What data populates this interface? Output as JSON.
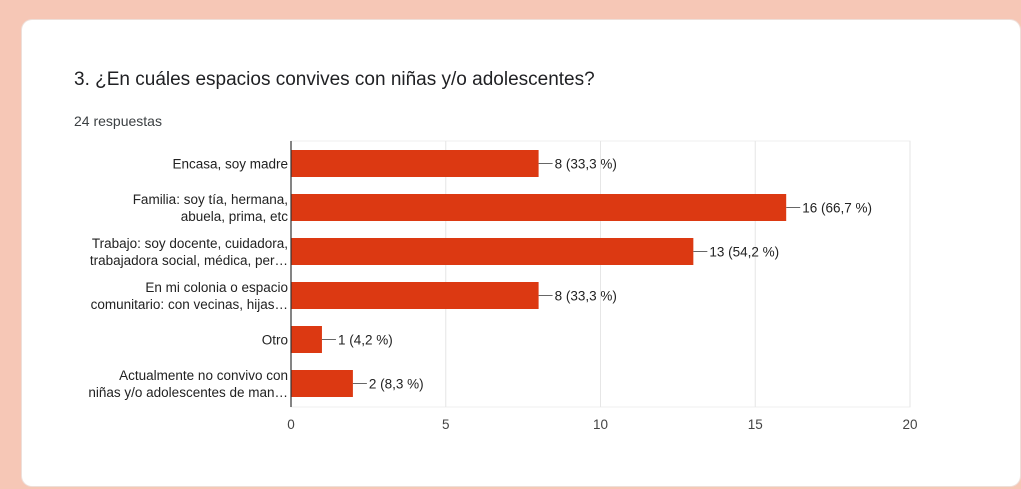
{
  "card": {
    "question": "3. ¿En cuáles espacios convives con niñas y/o adolescentes?",
    "response_count": "24 respuestas"
  },
  "colors": {
    "bar": "#dc3912",
    "background": "#f6c7b6",
    "card": "#ffffff",
    "grid": "#e6e6e6"
  },
  "chart_data": {
    "type": "bar",
    "orientation": "horizontal",
    "categories": [
      [
        "Encasa, soy madre"
      ],
      [
        "Familia: soy tía, hermana,",
        "abuela, prima, etc"
      ],
      [
        "Trabajo: soy docente, cuidadora,",
        "trabajadora social, médica, per…"
      ],
      [
        "En mi colonia o espacio",
        "comunitario: con vecinas, hijas…"
      ],
      [
        "Otro"
      ],
      [
        "Actualmente no convivo con",
        "niñas y/o adolescentes de man…"
      ]
    ],
    "values": [
      8,
      16,
      13,
      8,
      1,
      2
    ],
    "value_labels": [
      "8 (33,3 %)",
      "16 (66,7 %)",
      "13 (54,2 %)",
      "8 (33,3 %)",
      "1 (4,2 %)",
      "2 (8,3 %)"
    ],
    "xlim": [
      0,
      20
    ],
    "xticks": [
      0,
      5,
      10,
      15,
      20
    ],
    "grid": true,
    "legend": false
  }
}
